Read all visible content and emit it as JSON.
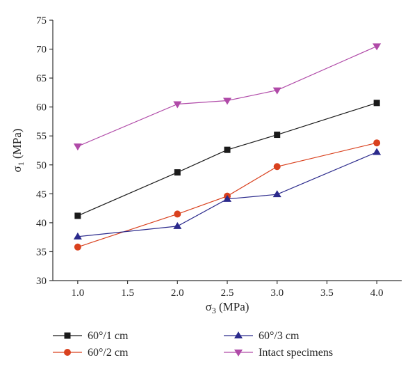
{
  "chart_data": {
    "type": "line",
    "title": "",
    "xlabel": {
      "main": "σ",
      "sub": "3",
      "unit": " (MPa)"
    },
    "ylabel": {
      "main": "σ",
      "sub": "1",
      "unit": " (MPa)"
    },
    "xlim": [
      0.75,
      4.25
    ],
    "ylim": [
      30,
      75
    ],
    "xticks": [
      "1.0",
      "1.5",
      "2.0",
      "2.5",
      "3.0",
      "3.5",
      "4.0"
    ],
    "yticks": [
      "30",
      "35",
      "40",
      "45",
      "50",
      "55",
      "60",
      "65",
      "70",
      "75"
    ],
    "x": [
      1.0,
      2.0,
      2.5,
      3.0,
      4.0
    ],
    "grid": false,
    "legend_position": "bottom",
    "series": [
      {
        "name": "60°/1 cm",
        "values": [
          41.2,
          48.7,
          52.6,
          55.2,
          60.7
        ],
        "color": "#1a1a1a",
        "marker": "square"
      },
      {
        "name": "60°/2 cm",
        "values": [
          35.8,
          41.5,
          44.6,
          49.7,
          53.8
        ],
        "color": "#d9411e",
        "marker": "circle"
      },
      {
        "name": "60°/3 cm",
        "values": [
          37.6,
          39.4,
          44.1,
          44.9,
          52.2
        ],
        "color": "#2b2a8c",
        "marker": "triangle-up"
      },
      {
        "name": "Intact specimens",
        "values": [
          53.2,
          60.5,
          61.1,
          62.9,
          70.5
        ],
        "color": "#b04aa8",
        "marker": "triangle-down"
      }
    ]
  }
}
